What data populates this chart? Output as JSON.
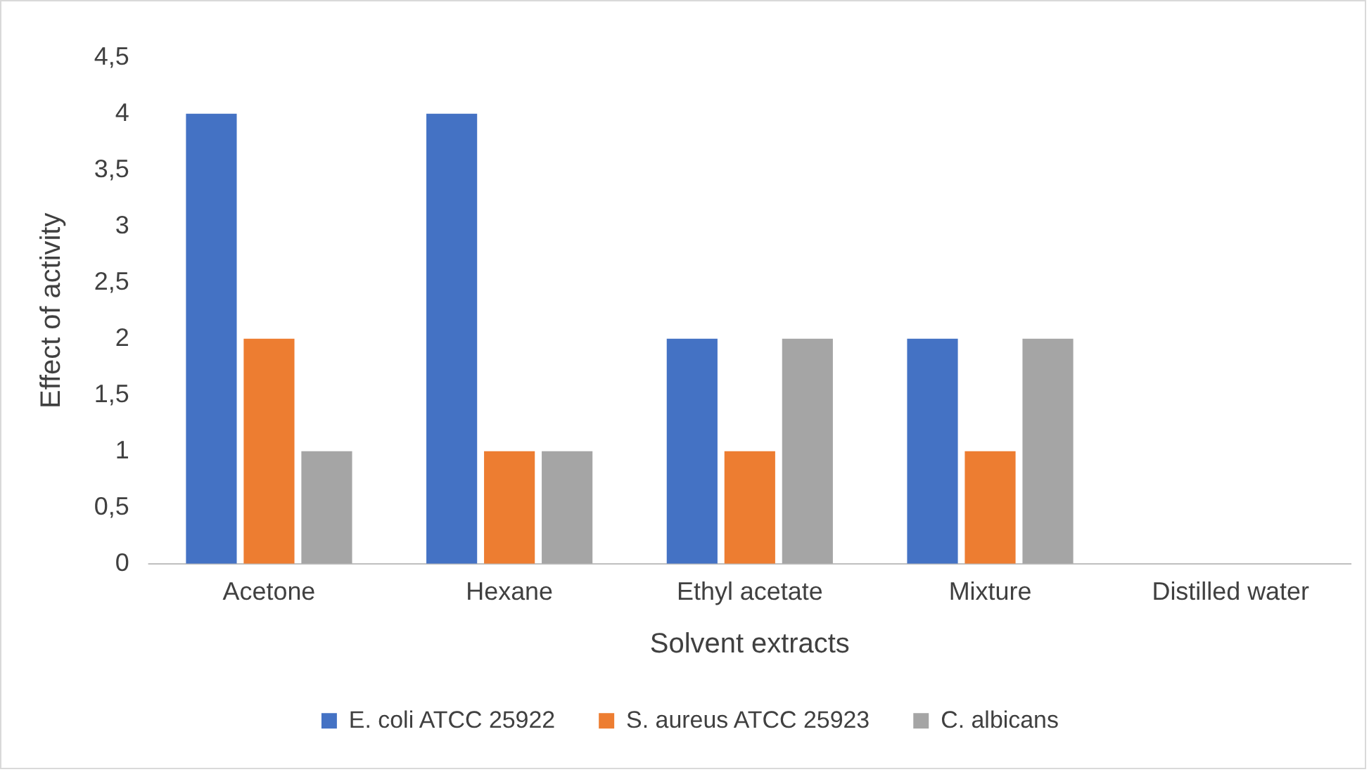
{
  "chart_data": {
    "type": "bar",
    "xlabel": "Solvent extracts",
    "ylabel": "Effect of activity",
    "categories": [
      "Acetone",
      "Hexane",
      "Ethyl acetate",
      "Mixture",
      "Distilled water"
    ],
    "series": [
      {
        "name": "E. coli ATCC 25922",
        "color": "#4472c4",
        "values": [
          4,
          4,
          2,
          2,
          0
        ]
      },
      {
        "name": "S. aureus ATCC 25923",
        "color": "#ed7d31",
        "values": [
          2,
          1,
          1,
          1,
          0
        ]
      },
      {
        "name": "C. albicans",
        "color": "#a5a5a5",
        "values": [
          1,
          1,
          2,
          2,
          0
        ]
      }
    ],
    "ylim": [
      0,
      4.5
    ],
    "yticks": [
      0,
      {
        "value": 0.5,
        "label": "0,5"
      },
      1,
      {
        "value": 1.5,
        "label": "1,5"
      },
      2,
      {
        "value": 2.5,
        "label": "2,5"
      },
      3,
      {
        "value": 3.5,
        "label": "3,5"
      },
      4,
      {
        "value": 4.5,
        "label": "4,5"
      }
    ],
    "grid": false,
    "legend": "bottom"
  }
}
